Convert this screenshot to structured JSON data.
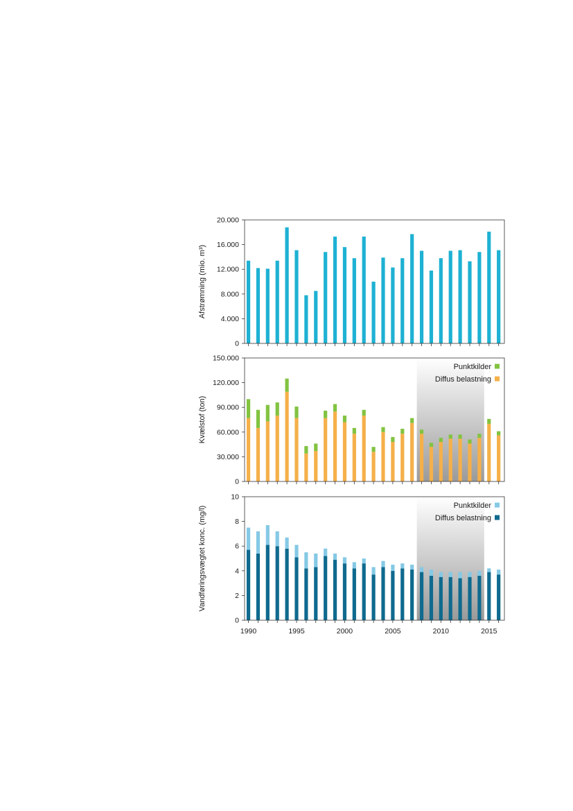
{
  "chart_data": [
    {
      "type": "bar",
      "ylabel": "Afstrømning (mio. m³)",
      "ylim": [
        0,
        20000
      ],
      "yticks": [
        "0",
        "4.000",
        "8.000",
        "12.000",
        "16.000",
        "20.000"
      ],
      "x": [
        1990,
        1991,
        1992,
        1993,
        1994,
        1995,
        1996,
        1997,
        1998,
        1999,
        2000,
        2001,
        2002,
        2003,
        2004,
        2005,
        2006,
        2007,
        2008,
        2009,
        2010,
        2011,
        2012,
        2013,
        2014,
        2015,
        2016
      ],
      "series": [
        {
          "values": [
            13400,
            12200,
            12100,
            13400,
            18800,
            15100,
            7800,
            8500,
            14800,
            17300,
            15600,
            13800,
            17300,
            10000,
            13900,
            12300,
            13800,
            17700,
            15000,
            11800,
            13800,
            15000,
            15100,
            13300,
            14800,
            18100,
            15100
          ],
          "color": "#1eb1d3"
        }
      ]
    },
    {
      "type": "bar",
      "stacked": true,
      "ylabel": "Kvælstof (ton)",
      "ylim": [
        0,
        150000
      ],
      "yticks": [
        "0",
        "30.000",
        "60.000",
        "90.000",
        "120.000",
        "150.000"
      ],
      "x": [
        1990,
        1991,
        1992,
        1993,
        1994,
        1995,
        1996,
        1997,
        1998,
        1999,
        2000,
        2001,
        2002,
        2003,
        2004,
        2005,
        2006,
        2007,
        2008,
        2009,
        2010,
        2011,
        2012,
        2013,
        2014,
        2015,
        2016
      ],
      "shaded_range": [
        2007.5,
        2014.5
      ],
      "legend_position": "top-right",
      "series": [
        {
          "name": "Diffus belastning",
          "color": "#f5b04a",
          "values": [
            77000,
            65000,
            73000,
            80000,
            109000,
            77000,
            34000,
            37000,
            77000,
            85000,
            72000,
            58000,
            80000,
            36000,
            60000,
            48000,
            58000,
            71000,
            58000,
            42000,
            48000,
            52000,
            52000,
            46000,
            53000,
            70000,
            56000
          ]
        },
        {
          "name": "Punktkilder",
          "color": "#82c341",
          "values": [
            23000,
            22000,
            20000,
            16000,
            16000,
            14000,
            9000,
            9000,
            9000,
            9000,
            8000,
            7000,
            7000,
            6000,
            6000,
            6000,
            6000,
            6000,
            5000,
            5000,
            5000,
            5000,
            5000,
            5000,
            5000,
            6000,
            5000
          ]
        }
      ]
    },
    {
      "type": "bar",
      "stacked": true,
      "ylabel": "Vandføringsvægtet konc. (mg/l)",
      "ylim": [
        0,
        10
      ],
      "yticks": [
        "0",
        "2",
        "4",
        "6",
        "8",
        "10"
      ],
      "x": [
        1990,
        1991,
        1992,
        1993,
        1994,
        1995,
        1996,
        1997,
        1998,
        1999,
        2000,
        2001,
        2002,
        2003,
        2004,
        2005,
        2006,
        2007,
        2008,
        2009,
        2010,
        2011,
        2012,
        2013,
        2014,
        2015,
        2016
      ],
      "xticks": [
        "1990",
        "1995",
        "2000",
        "2005",
        "2010",
        "2015"
      ],
      "shaded_range": [
        2007.5,
        2014.5
      ],
      "legend_position": "top-right",
      "series": [
        {
          "name": "Diffus belastning",
          "color": "#0f6a8e",
          "values": [
            5.7,
            5.4,
            6.1,
            6.0,
            5.8,
            5.1,
            4.2,
            4.3,
            5.2,
            4.9,
            4.6,
            4.2,
            4.6,
            3.7,
            4.3,
            4.0,
            4.2,
            4.1,
            3.9,
            3.6,
            3.5,
            3.5,
            3.4,
            3.5,
            3.6,
            3.9,
            3.7
          ]
        },
        {
          "name": "Punktkilder",
          "color": "#85c9e5",
          "values": [
            1.8,
            1.8,
            1.6,
            1.2,
            0.9,
            1.0,
            1.3,
            1.1,
            0.6,
            0.5,
            0.5,
            0.5,
            0.4,
            0.6,
            0.5,
            0.5,
            0.4,
            0.4,
            0.4,
            0.5,
            0.4,
            0.4,
            0.5,
            0.4,
            0.4,
            0.3,
            0.4
          ]
        }
      ]
    }
  ]
}
